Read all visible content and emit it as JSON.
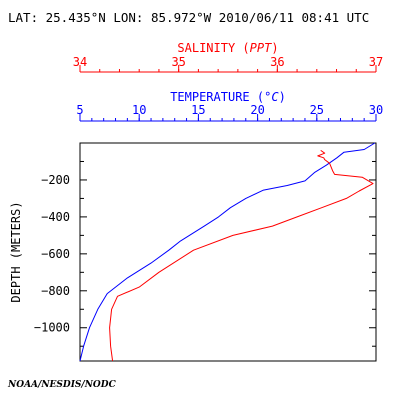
{
  "header": {
    "title": "LAT: 25.435°N LON: 85.972°W 2010/06/11 08:41 UTC",
    "footer": "NOAA/NESDIS/NODC"
  },
  "colors": {
    "temperature": "#0000ff",
    "salinity": "#ff0000",
    "frame": "#000000"
  },
  "chart_data": {
    "type": "line",
    "title": "LAT: 25.435°N LON: 85.972°W 2010/06/11 08:41 UTC",
    "ylabel": "DEPTH (METERS)",
    "ylim": [
      -1180,
      0
    ],
    "yticks": [
      -200,
      -400,
      -600,
      -800,
      -1000
    ],
    "ytick_labels": [
      "−200",
      "−400",
      "−600",
      "−800",
      "−1000"
    ],
    "grid": false,
    "axes": {
      "salinity": {
        "label_prefix": "SALINITY (",
        "label_unit": "PPT",
        "label_suffix": ")",
        "range": [
          34,
          37
        ],
        "ticks": [
          34,
          35,
          36,
          37
        ],
        "tick_labels": [
          "34",
          "35",
          "36",
          "37"
        ],
        "color": "#ff0000"
      },
      "temperature": {
        "label_prefix": "TEMPERATURE (",
        "label_unit": "°C",
        "label_suffix": ")",
        "range": [
          5,
          30
        ],
        "ticks": [
          5,
          10,
          15,
          20,
          25,
          30
        ],
        "tick_labels": [
          "5",
          "10",
          "15",
          "20",
          "25",
          "30"
        ],
        "color": "#0000ff"
      }
    },
    "series": [
      {
        "variable": "temperature",
        "color": "#0000ff",
        "points": [
          [
            29.9,
            0
          ],
          [
            29.0,
            -35
          ],
          [
            27.3,
            -50
          ],
          [
            26.7,
            -80
          ],
          [
            25.8,
            -120
          ],
          [
            24.8,
            -160
          ],
          [
            24.0,
            -205
          ],
          [
            22.5,
            -230
          ],
          [
            20.5,
            -255
          ],
          [
            19.0,
            -300
          ],
          [
            17.7,
            -350
          ],
          [
            16.7,
            -400
          ],
          [
            15.5,
            -450
          ],
          [
            13.5,
            -530
          ],
          [
            12.5,
            -580
          ],
          [
            11.0,
            -650
          ],
          [
            9.0,
            -730
          ],
          [
            7.3,
            -815
          ],
          [
            6.5,
            -900
          ],
          [
            5.8,
            -1000
          ],
          [
            5.3,
            -1100
          ],
          [
            5.0,
            -1180
          ]
        ]
      },
      {
        "variable": "salinity",
        "color": "#ff0000",
        "points": [
          [
            36.44,
            -40
          ],
          [
            36.48,
            -55
          ],
          [
            36.41,
            -70
          ],
          [
            36.47,
            -80
          ],
          [
            36.48,
            -90
          ],
          [
            36.53,
            -110
          ],
          [
            36.56,
            -150
          ],
          [
            36.58,
            -170
          ],
          [
            36.86,
            -185
          ],
          [
            36.97,
            -220
          ],
          [
            36.83,
            -260
          ],
          [
            36.7,
            -300
          ],
          [
            36.45,
            -350
          ],
          [
            36.2,
            -400
          ],
          [
            35.95,
            -450
          ],
          [
            35.55,
            -500
          ],
          [
            35.15,
            -580
          ],
          [
            34.8,
            -700
          ],
          [
            34.6,
            -780
          ],
          [
            34.38,
            -830
          ],
          [
            34.32,
            -900
          ],
          [
            34.3,
            -1000
          ],
          [
            34.31,
            -1100
          ],
          [
            34.33,
            -1180
          ]
        ]
      }
    ]
  }
}
